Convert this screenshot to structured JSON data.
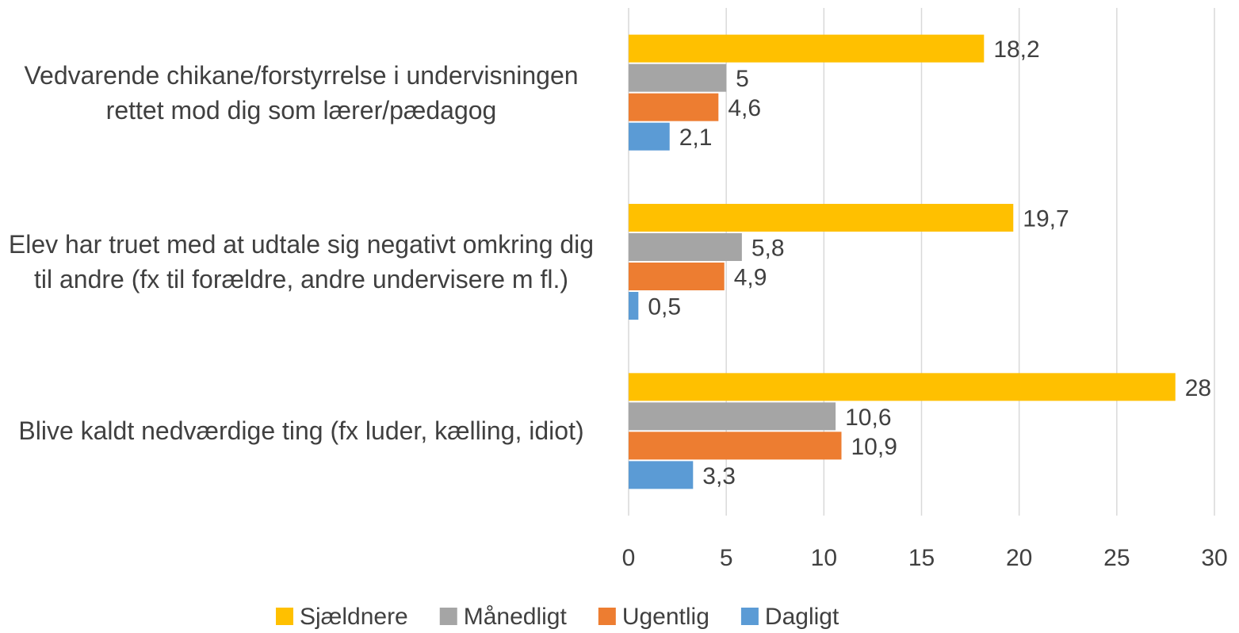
{
  "chart_data": {
    "type": "hbar",
    "categories": [
      "Vedvarende chikane/forstyrrelse i undervisningen rettet mod dig som lærer/pædagog",
      "Elev har truet med at udtale sig negativt omkring dig til andre (fx til forældre, andre undervisere m fl.)",
      "Blive kaldt nedværdige ting (fx luder, kælling, idiot)"
    ],
    "series": [
      {
        "name": "Sjældnere",
        "color": "#ffc000",
        "values": [
          18.2,
          19.7,
          28
        ],
        "value_labels": [
          "18,2",
          "19,7",
          "28"
        ]
      },
      {
        "name": "Månedligt",
        "color": "#a5a5a5",
        "values": [
          5,
          5.8,
          10.6
        ],
        "value_labels": [
          "5",
          "5,8",
          "10,6"
        ]
      },
      {
        "name": "Ugentlig",
        "color": "#ed7d31",
        "values": [
          4.6,
          4.9,
          10.9
        ],
        "value_labels": [
          "4,6",
          "4,9",
          "10,9"
        ]
      },
      {
        "name": "Dagligt",
        "color": "#5b9bd5",
        "values": [
          2.1,
          0.5,
          3.3
        ],
        "value_labels": [
          "2,1",
          "0,5",
          "3,3"
        ]
      }
    ],
    "xlim": [
      0,
      30
    ],
    "xticks": [
      0,
      5,
      10,
      15,
      20,
      25,
      30
    ],
    "grid": true,
    "legend": "bottom"
  }
}
